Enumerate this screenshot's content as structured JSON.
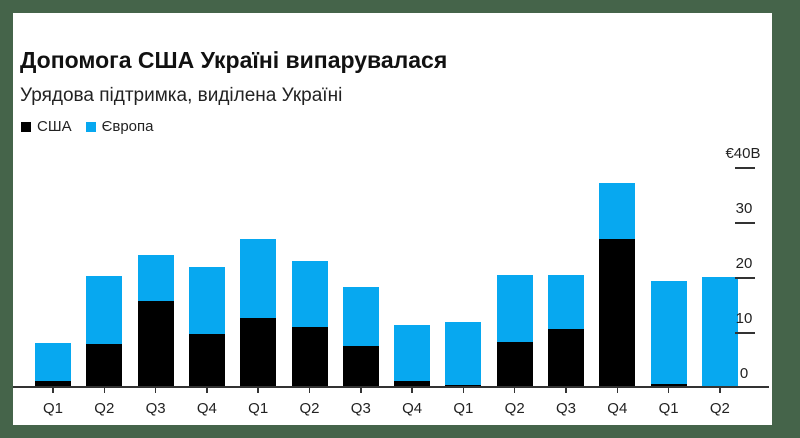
{
  "header": {
    "title": "Допомога США Україні випарувалася",
    "subtitle": "Урядова підтримка, виділена Україні"
  },
  "legend": [
    {
      "label": "США",
      "color": "#000000"
    },
    {
      "label": "Європа",
      "color": "#07a8f0"
    }
  ],
  "chart_data": {
    "type": "bar",
    "stacked": true,
    "title": "Допомога США Україні випарувалася",
    "subtitle": "Урядова підтримка, виділена Україні",
    "xlabel": "",
    "ylabel": "",
    "categories": [
      "Q1",
      "Q2",
      "Q3",
      "Q4",
      "Q1",
      "Q2",
      "Q3",
      "Q4",
      "Q1",
      "Q2",
      "Q3",
      "Q4",
      "Q1",
      "Q2"
    ],
    "series": [
      {
        "name": "США",
        "color": "#000000",
        "values": [
          1.1,
          7.8,
          15.6,
          9.6,
          12.5,
          10.9,
          7.5,
          1.1,
          0.3,
          8.2,
          10.5,
          26.9,
          0.6,
          0
        ]
      },
      {
        "name": "Європа",
        "color": "#07a8f0",
        "values": [
          6.9,
          12.4,
          8.4,
          12.2,
          14.4,
          12.0,
          10.7,
          10.2,
          11.5,
          12.2,
          9.9,
          10.2,
          18.7,
          20.0
        ]
      }
    ],
    "y_ticks": [
      "0",
      "10",
      "20",
      "30",
      "€40B"
    ],
    "ylim": [
      0,
      40
    ],
    "y_unit": "€B",
    "y_axis_position": "right",
    "grid": false,
    "legend_position": "top-left"
  }
}
